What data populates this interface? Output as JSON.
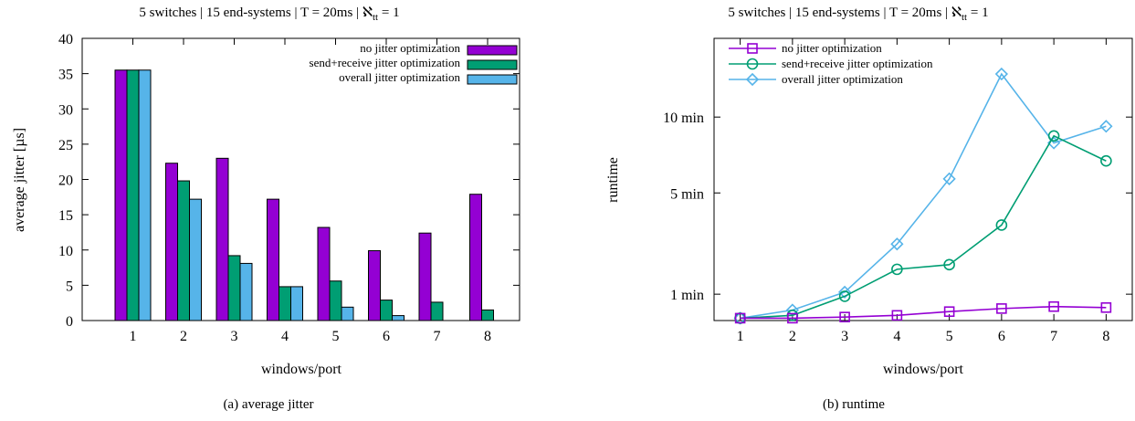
{
  "colors": {
    "purple": "#9400d3",
    "green": "#009e73",
    "blue": "#56b4e9"
  },
  "chart_data": [
    {
      "id": "a",
      "type": "bar",
      "title": "5 switches | 15 end-systems | T = 20ms | ℵ",
      "title_sub": "tt",
      "title_tail": " = 1",
      "caption": "(a)  average jitter",
      "xlabel": "windows/port",
      "ylabel": "average jitter [µs]",
      "categories": [
        "1",
        "2",
        "3",
        "4",
        "5",
        "6",
        "7",
        "8"
      ],
      "ylim": [
        0,
        40
      ],
      "yticks": [
        0,
        5,
        10,
        15,
        20,
        25,
        30,
        35,
        40
      ],
      "legend_position": "top-right",
      "series": [
        {
          "name": "no jitter optimization",
          "color": "#9400d3",
          "values": [
            35.5,
            22.3,
            23.0,
            17.2,
            13.2,
            9.9,
            12.4,
            17.9
          ]
        },
        {
          "name": "send+receive jitter optimization",
          "color": "#009e73",
          "values": [
            35.5,
            19.8,
            9.2,
            4.8,
            5.6,
            2.9,
            2.6,
            1.5
          ]
        },
        {
          "name": "overall jitter optimization",
          "color": "#56b4e9",
          "values": [
            35.5,
            17.2,
            8.1,
            4.8,
            1.9,
            0.7,
            0,
            0
          ]
        }
      ]
    },
    {
      "id": "b",
      "type": "line",
      "title": "5 switches | 15 end-systems | T = 20ms | ℵ",
      "title_sub": "tt",
      "title_tail": " = 1",
      "caption": "(b)  runtime",
      "xlabel": "windows/port",
      "ylabel": "runtime",
      "x": [
        1,
        2,
        3,
        4,
        5,
        6,
        7,
        8
      ],
      "xlim": [
        0.5,
        8.5
      ],
      "yscale": "sqrt",
      "ylim_minutes": [
        0.46,
        17
      ],
      "yticks": [
        {
          "label": "1 min",
          "value": 1
        },
        {
          "label": "5 min",
          "value": 5
        },
        {
          "label": "10 min",
          "value": 10
        }
      ],
      "legend_position": "top-left",
      "series": [
        {
          "name": "no jitter optimization",
          "marker": "square",
          "color": "#9400d3",
          "values": [
            0.5,
            0.5,
            0.52,
            0.55,
            0.62,
            0.68,
            0.72,
            0.7
          ]
        },
        {
          "name": "send+receive jitter optimization",
          "marker": "circle",
          "color": "#009e73",
          "values": [
            0.5,
            0.55,
            0.95,
            1.7,
            1.85,
            3.4,
            8.6,
            6.9
          ]
        },
        {
          "name": "overall jitter optimization",
          "marker": "diamond",
          "color": "#56b4e9",
          "values": [
            0.5,
            0.65,
            1.05,
            2.6,
            5.8,
            13.6,
            8.1,
            9.3
          ]
        }
      ]
    }
  ]
}
